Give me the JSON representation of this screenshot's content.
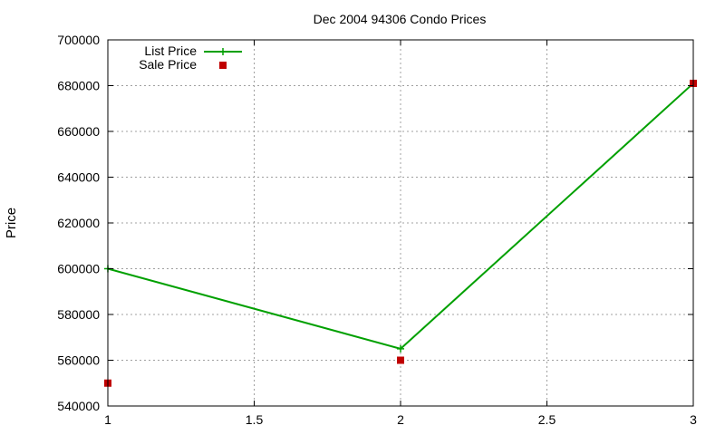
{
  "chart_data": {
    "type": "line",
    "title": "Dec 2004 94306 Condo Prices",
    "xlabel": "",
    "ylabel": "Price",
    "xlim": [
      1,
      3
    ],
    "ylim": [
      540000,
      700000
    ],
    "x_ticks": [
      1,
      1.5,
      2,
      2.5,
      3
    ],
    "x_tick_labels": [
      "1",
      "1.5",
      "2",
      "2.5",
      "3"
    ],
    "y_ticks": [
      540000,
      560000,
      580000,
      600000,
      620000,
      640000,
      660000,
      680000,
      700000
    ],
    "y_tick_labels": [
      "540000",
      "560000",
      "580000",
      "600000",
      "620000",
      "640000",
      "660000",
      "680000",
      "700000"
    ],
    "grid": true,
    "legend_position": "top-left",
    "series": [
      {
        "name": "List Price",
        "style": "line-plus",
        "color": "#00a000",
        "x": [
          1,
          2,
          3
        ],
        "y": [
          600000,
          565000,
          681000
        ]
      },
      {
        "name": "Sale Price",
        "style": "square-points",
        "color": "#c00000",
        "x": [
          1,
          2,
          3
        ],
        "y": [
          550000,
          560000,
          681000
        ]
      }
    ]
  }
}
